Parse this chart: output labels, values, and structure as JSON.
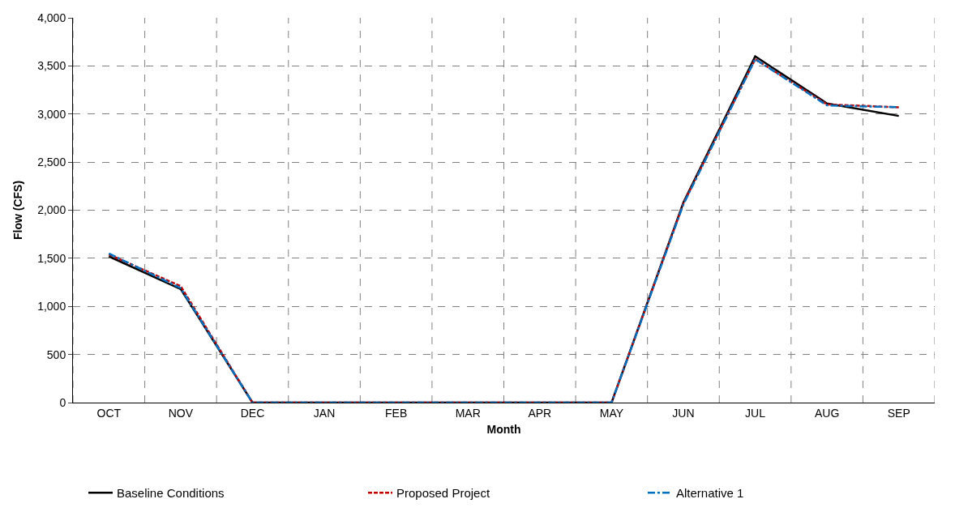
{
  "chart_data": {
    "type": "line",
    "xlabel": "Month",
    "ylabel": "Flow (CFS)",
    "categories": [
      "OCT",
      "NOV",
      "DEC",
      "JAN",
      "FEB",
      "MAR",
      "APR",
      "MAY",
      "JUN",
      "JUL",
      "AUG",
      "SEP"
    ],
    "series": [
      {
        "name": "Baseline Conditions",
        "color": "#000000",
        "line_style": "solid",
        "values": [
          1520,
          1180,
          0,
          0,
          0,
          0,
          0,
          0,
          2080,
          3600,
          3110,
          2980
        ]
      },
      {
        "name": "Proposed Project",
        "color": "#c00000",
        "line_style": "dashed",
        "values": [
          1540,
          1210,
          0,
          0,
          0,
          0,
          0,
          0,
          2070,
          3570,
          3100,
          3070
        ]
      },
      {
        "name": "Alternative 1",
        "color": "#0070c0",
        "line_style": "dashdot",
        "values": [
          1550,
          1190,
          0,
          0,
          0,
          0,
          0,
          0,
          2060,
          3570,
          3090,
          3070
        ]
      }
    ],
    "ylim": [
      0,
      4000
    ],
    "yticks": [
      {
        "value": 0,
        "label": "0"
      },
      {
        "value": 500,
        "label": "500"
      },
      {
        "value": 1000,
        "label": "1,000"
      },
      {
        "value": 1500,
        "label": "1,500"
      },
      {
        "value": 2000,
        "label": "2,000"
      },
      {
        "value": 2500,
        "label": "2,500"
      },
      {
        "value": 3000,
        "label": "3,000"
      },
      {
        "value": 3500,
        "label": "3,500"
      },
      {
        "value": 4000,
        "label": "4,000"
      }
    ],
    "grid": true,
    "legend": "bottom",
    "marker": "none"
  }
}
